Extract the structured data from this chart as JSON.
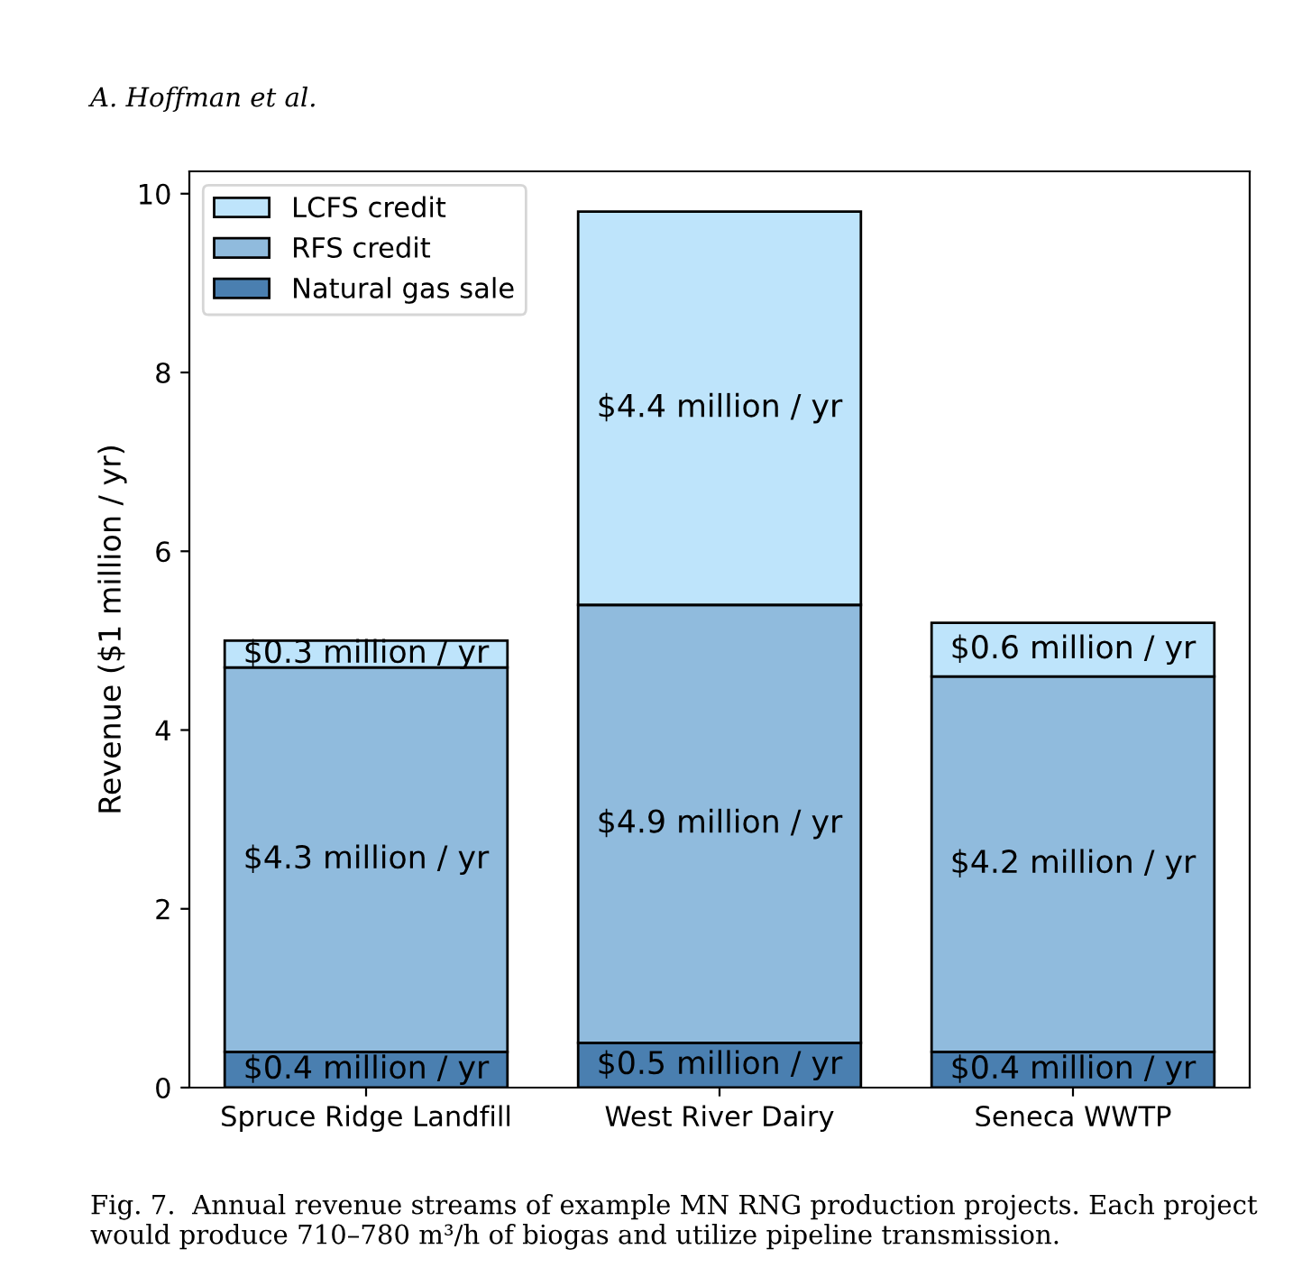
{
  "chart_data": {
    "type": "bar",
    "stacked": true,
    "categories": [
      "Spruce Ridge Landfill",
      "West River Dairy",
      "Seneca WWTP"
    ],
    "ylabel": "Revenue ($1 million / yr)",
    "ylim": [
      0,
      10.25
    ],
    "yticks": [
      0,
      2,
      4,
      6,
      8,
      10
    ],
    "legend": "top left",
    "grid": false,
    "series": [
      {
        "name": "Natural gas sale",
        "color": "#4a7fb0",
        "values": [
          0.4,
          0.5,
          0.4
        ],
        "value_labels": [
          "$0.4 million / yr",
          "$0.5 million / yr",
          "$0.4 million / yr"
        ]
      },
      {
        "name": "RFS credit",
        "color": "#90bbdd",
        "values": [
          4.3,
          4.9,
          4.2
        ],
        "value_labels": [
          "$4.3 million / yr",
          "$4.9 million / yr",
          "$4.2 million / yr"
        ]
      },
      {
        "name": "LCFS credit",
        "color": "#bee4fb",
        "values": [
          0.3,
          4.4,
          0.6
        ],
        "value_labels": [
          "$0.3 million / yr",
          "$4.4 million / yr",
          "$0.6 million / yr"
        ]
      }
    ],
    "annotations": [
      "A. Hoffman et al.",
      "Fig. 7.  Annual revenue streams of example MN RNG production projects. Each project would produce 710–780 m³/h of biogas and utilize pipeline transmission."
    ]
  }
}
